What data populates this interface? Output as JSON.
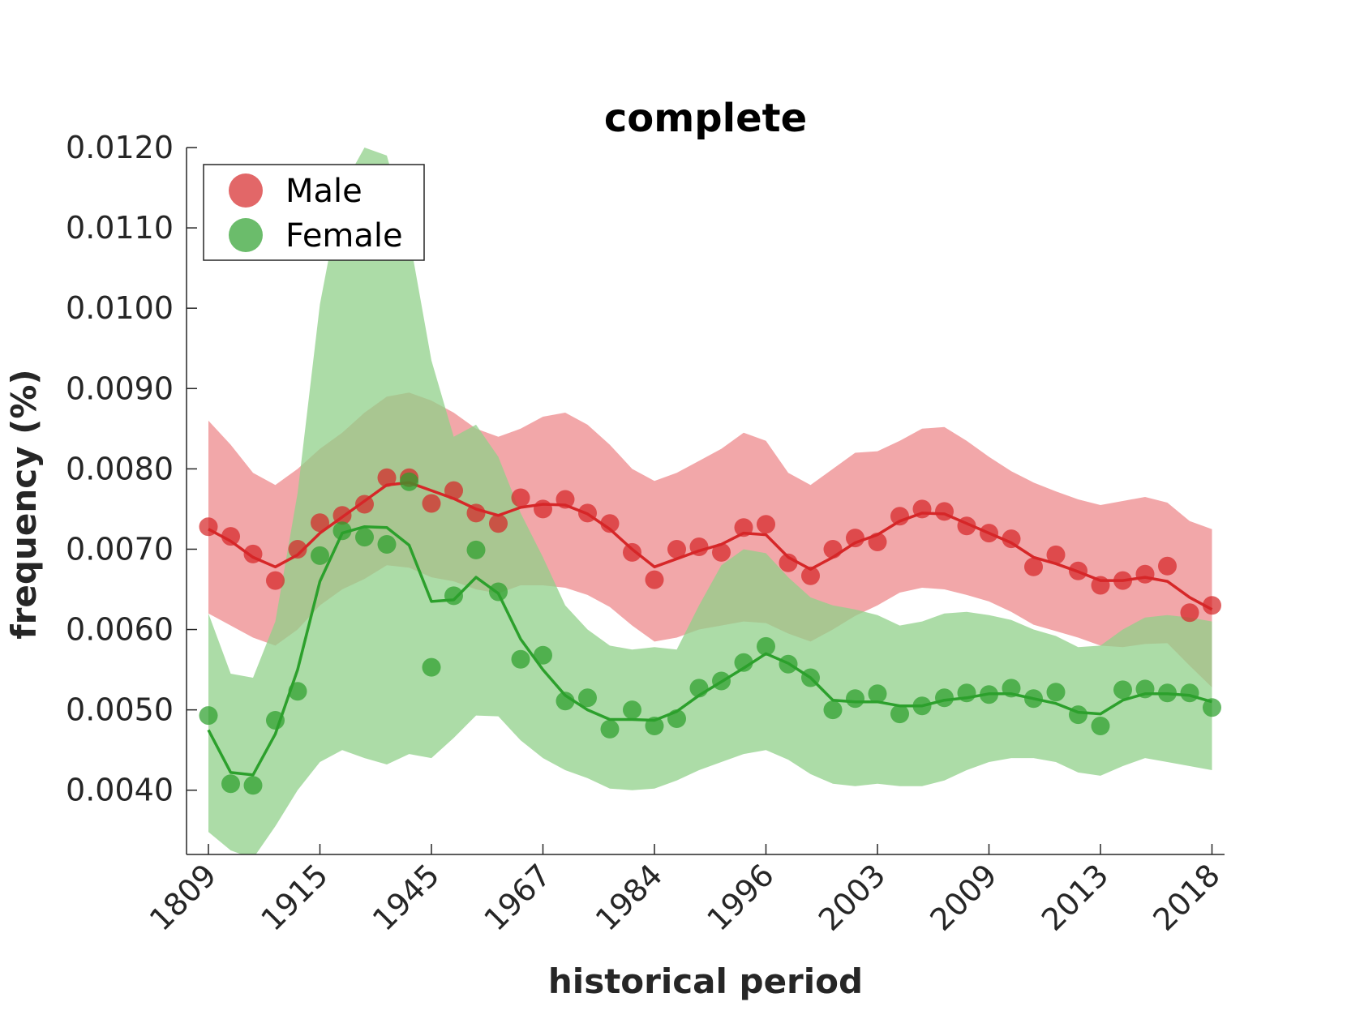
{
  "chart_data": {
    "type": "line",
    "title": "complete",
    "xlabel": "historical period",
    "ylabel": "frequency (%)",
    "ylim": [
      0.0032,
      0.012
    ],
    "yticks": [
      "0.0040",
      "0.0050",
      "0.0060",
      "0.0070",
      "0.0080",
      "0.0090",
      "0.0100",
      "0.0110",
      "0.0120"
    ],
    "ytick_values": [
      0.004,
      0.005,
      0.006,
      0.007,
      0.008,
      0.009,
      0.01,
      0.011,
      0.012
    ],
    "xtick_labels": [
      "1809",
      "1915",
      "1945",
      "1967",
      "1984",
      "1996",
      "2003",
      "2009",
      "2013",
      "2018"
    ],
    "xtick_index": [
      0,
      5,
      10,
      15,
      20,
      25,
      30,
      35,
      40,
      45
    ],
    "n_periods": 46,
    "grid": false,
    "legend": {
      "position": "top-left",
      "entries": [
        "Male",
        "Female"
      ]
    },
    "series": [
      {
        "name": "Male",
        "color": "#d62728",
        "band_color": "#ee8a8c",
        "points": [
          0.00728,
          0.00716,
          0.00694,
          0.00661,
          0.007,
          0.00733,
          0.00742,
          0.00756,
          0.00789,
          0.00789,
          0.00757,
          0.00773,
          0.00745,
          0.00732,
          0.00764,
          0.0075,
          0.00762,
          0.00745,
          0.00732,
          0.00696,
          0.00662,
          0.007,
          0.00703,
          0.00696,
          0.00727,
          0.00731,
          0.00683,
          0.00667,
          0.007,
          0.00714,
          0.00709,
          0.00741,
          0.0075,
          0.00747,
          0.00729,
          0.0072,
          0.00713,
          0.00678,
          0.00693,
          0.00673,
          0.00655,
          0.00661,
          0.00669,
          0.00679,
          0.00621,
          0.0063
        ],
        "line": [
          0.00725,
          0.0071,
          0.0069,
          0.00678,
          0.00693,
          0.0072,
          0.0074,
          0.0076,
          0.0078,
          0.00783,
          0.00773,
          0.00763,
          0.0075,
          0.00742,
          0.00752,
          0.00756,
          0.00755,
          0.00744,
          0.00725,
          0.007,
          0.00678,
          0.00688,
          0.00698,
          0.00706,
          0.0072,
          0.00718,
          0.0069,
          0.00675,
          0.0069,
          0.00708,
          0.00718,
          0.00735,
          0.00745,
          0.00744,
          0.00732,
          0.0072,
          0.00708,
          0.0069,
          0.00682,
          0.00672,
          0.00661,
          0.00661,
          0.00665,
          0.0066,
          0.0064,
          0.00625
        ],
        "band_upper": [
          0.0086,
          0.0083,
          0.00795,
          0.0078,
          0.008,
          0.00825,
          0.00845,
          0.0087,
          0.0089,
          0.00895,
          0.00885,
          0.0087,
          0.0085,
          0.0084,
          0.0085,
          0.00865,
          0.0087,
          0.00855,
          0.0083,
          0.008,
          0.00785,
          0.00795,
          0.0081,
          0.00825,
          0.00845,
          0.00835,
          0.00795,
          0.0078,
          0.008,
          0.0082,
          0.00822,
          0.00835,
          0.0085,
          0.00852,
          0.00835,
          0.00815,
          0.00797,
          0.00783,
          0.00772,
          0.00762,
          0.00755,
          0.0076,
          0.00765,
          0.00758,
          0.00735,
          0.00725
        ],
        "band_lower": [
          0.0062,
          0.00605,
          0.0059,
          0.0058,
          0.006,
          0.0063,
          0.0065,
          0.00663,
          0.0068,
          0.00677,
          0.00665,
          0.0066,
          0.0065,
          0.00645,
          0.00655,
          0.00655,
          0.00652,
          0.00643,
          0.00628,
          0.00605,
          0.00585,
          0.0059,
          0.006,
          0.00605,
          0.0061,
          0.00608,
          0.00595,
          0.00585,
          0.006,
          0.00617,
          0.0063,
          0.00646,
          0.00652,
          0.0065,
          0.00643,
          0.00635,
          0.00622,
          0.00606,
          0.00598,
          0.0059,
          0.0058,
          0.00578,
          0.00582,
          0.00583,
          0.00555,
          0.00528
        ]
      },
      {
        "name": "Female",
        "color": "#2ca02c",
        "band_color": "#90d08a",
        "points": [
          0.00493,
          0.00408,
          0.00406,
          0.00487,
          0.00523,
          0.00692,
          0.00723,
          0.00715,
          0.00706,
          0.00784,
          0.00553,
          0.00642,
          0.00699,
          0.00647,
          0.00563,
          0.00568,
          0.00511,
          0.00515,
          0.00476,
          0.005,
          0.0048,
          0.00489,
          0.00527,
          0.00536,
          0.00559,
          0.00579,
          0.00557,
          0.0054,
          0.005,
          0.00514,
          0.0052,
          0.00495,
          0.00505,
          0.00515,
          0.00521,
          0.00519,
          0.00527,
          0.00514,
          0.00522,
          0.00494,
          0.0048,
          0.00525,
          0.00526,
          0.00521,
          0.00521,
          0.00503
        ],
        "line": [
          0.00475,
          0.00422,
          0.00419,
          0.0047,
          0.0055,
          0.0066,
          0.0072,
          0.00728,
          0.00727,
          0.00705,
          0.00635,
          0.00637,
          0.00665,
          0.00645,
          0.00588,
          0.0055,
          0.00518,
          0.005,
          0.00488,
          0.00488,
          0.00487,
          0.00498,
          0.00518,
          0.00535,
          0.00552,
          0.0057,
          0.00558,
          0.0054,
          0.00512,
          0.0051,
          0.0051,
          0.00505,
          0.00505,
          0.00512,
          0.00515,
          0.0052,
          0.0052,
          0.00514,
          0.00508,
          0.00497,
          0.00495,
          0.00512,
          0.0052,
          0.0052,
          0.00518,
          0.0051
        ],
        "band_upper": [
          0.0062,
          0.00545,
          0.0054,
          0.0061,
          0.0077,
          0.01005,
          0.0115,
          0.012,
          0.0119,
          0.0109,
          0.00935,
          0.0084,
          0.00855,
          0.00815,
          0.00745,
          0.0069,
          0.0063,
          0.006,
          0.0058,
          0.00575,
          0.00578,
          0.00575,
          0.0063,
          0.0068,
          0.007,
          0.00695,
          0.00665,
          0.0064,
          0.0063,
          0.00625,
          0.00618,
          0.00605,
          0.0061,
          0.0062,
          0.00622,
          0.00618,
          0.00612,
          0.006,
          0.00592,
          0.00578,
          0.0058,
          0.006,
          0.00615,
          0.00618,
          0.00615,
          0.0061
        ],
        "band_lower": [
          0.00348,
          0.00325,
          0.00315,
          0.00355,
          0.004,
          0.00435,
          0.0045,
          0.0044,
          0.00432,
          0.00445,
          0.0044,
          0.00465,
          0.00493,
          0.00492,
          0.00462,
          0.0044,
          0.00425,
          0.00415,
          0.00402,
          0.004,
          0.00402,
          0.00412,
          0.00425,
          0.00435,
          0.00445,
          0.0045,
          0.00438,
          0.0042,
          0.00408,
          0.00405,
          0.00408,
          0.00405,
          0.00405,
          0.00412,
          0.00425,
          0.00435,
          0.0044,
          0.0044,
          0.00435,
          0.00422,
          0.00418,
          0.0043,
          0.0044,
          0.00435,
          0.0043,
          0.00425
        ]
      }
    ]
  }
}
